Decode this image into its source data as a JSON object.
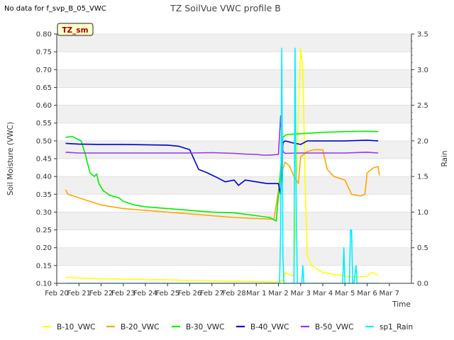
{
  "note": "No data for f_svp_B_05_VWC",
  "badge": "TZ_sm",
  "chart_data": {
    "type": "line",
    "title": "TZ SoilVue VWC profile B",
    "xlabel": "Time",
    "ylabel": "Soil Moisture (VWC)",
    "y2label": "Rain",
    "xlim": [
      0,
      16
    ],
    "ylim": [
      0.1,
      0.8
    ],
    "y2lim": [
      0.0,
      3.5
    ],
    "grid": "horizontal bands",
    "legend": "bottom",
    "x_ticks": [
      "Feb 20",
      "Feb 21",
      "Feb 22",
      "Feb 23",
      "Feb 24",
      "Feb 25",
      "Feb 26",
      "Feb 27",
      "Feb 28",
      "Mar 1",
      "Mar 2",
      "Mar 3",
      "Mar 4",
      "Mar 5",
      "Mar 6",
      "Mar 7"
    ],
    "y_ticks": [
      "0.10",
      "0.15",
      "0.20",
      "0.25",
      "0.30",
      "0.35",
      "0.40",
      "0.45",
      "0.50",
      "0.55",
      "0.60",
      "0.65",
      "0.70",
      "0.75",
      "0.80"
    ],
    "y2_ticks": [
      "0.0",
      "0.5",
      "1.0",
      "1.5",
      "2.0",
      "2.5",
      "3.0",
      "3.5"
    ],
    "series": [
      {
        "name": "B-10_VWC",
        "color": "#ffff00",
        "axis": "left",
        "x": [
          0.4,
          1,
          2,
          3,
          4,
          5,
          6,
          7,
          8,
          9,
          9.8,
          10.2,
          10.3,
          10.5,
          10.7,
          10.9,
          11.0,
          11.1,
          11.2,
          11.3,
          11.5,
          12,
          13,
          13.5,
          14,
          14.2,
          14.5
        ],
        "y": [
          0.117,
          0.115,
          0.113,
          0.112,
          0.111,
          0.11,
          0.108,
          0.107,
          0.106,
          0.105,
          0.103,
          0.108,
          0.13,
          0.125,
          0.12,
          0.58,
          0.76,
          0.7,
          0.4,
          0.18,
          0.15,
          0.13,
          0.12,
          0.118,
          0.12,
          0.13,
          0.125
        ]
      },
      {
        "name": "B-20_VWC",
        "color": "#ffa500",
        "axis": "left",
        "x": [
          0.4,
          0.5,
          1,
          2,
          3,
          4,
          5,
          6,
          7,
          8,
          9,
          9.8,
          10.1,
          10.3,
          10.5,
          10.7,
          10.9,
          11.0,
          11.3,
          11.6,
          12.0,
          12.2,
          12.5,
          13.0,
          13.3,
          13.7,
          13.9,
          14.0,
          14.3,
          14.5,
          14.55
        ],
        "y": [
          0.363,
          0.35,
          0.34,
          0.32,
          0.31,
          0.305,
          0.3,
          0.295,
          0.29,
          0.285,
          0.282,
          0.28,
          0.4,
          0.44,
          0.43,
          0.4,
          0.38,
          0.455,
          0.47,
          0.475,
          0.475,
          0.42,
          0.4,
          0.39,
          0.35,
          0.345,
          0.35,
          0.41,
          0.425,
          0.428,
          0.403
        ]
      },
      {
        "name": "B-30_VWC",
        "color": "#00ee00",
        "axis": "left",
        "x": [
          0.4,
          0.7,
          1.1,
          1.3,
          1.5,
          1.7,
          1.8,
          1.9,
          2.1,
          2.4,
          2.8,
          3.0,
          3.5,
          4.0,
          5.0,
          6.0,
          7.0,
          8.0,
          9.0,
          9.6,
          9.9,
          10.1,
          10.2,
          10.3,
          10.4,
          11.0,
          12.0,
          13.0,
          14.0,
          14.5
        ],
        "y": [
          0.51,
          0.512,
          0.5,
          0.46,
          0.41,
          0.4,
          0.407,
          0.38,
          0.36,
          0.347,
          0.34,
          0.33,
          0.32,
          0.315,
          0.31,
          0.305,
          0.3,
          0.298,
          0.29,
          0.285,
          0.275,
          0.42,
          0.51,
          0.515,
          0.518,
          0.52,
          0.524,
          0.526,
          0.527,
          0.526
        ]
      },
      {
        "name": "B-40_VWC",
        "color": "#0000cc",
        "axis": "left",
        "x": [
          0.4,
          1,
          2,
          3,
          4,
          5,
          5.5,
          6.0,
          6.4,
          6.8,
          7.3,
          7.6,
          8.0,
          8.2,
          8.5,
          9.0,
          9.5,
          10.0,
          10.1,
          10.2,
          10.3,
          10.6,
          11.0,
          11.3,
          12,
          13,
          14,
          14.5
        ],
        "y": [
          0.493,
          0.491,
          0.49,
          0.49,
          0.489,
          0.488,
          0.485,
          0.475,
          0.42,
          0.41,
          0.395,
          0.385,
          0.39,
          0.375,
          0.39,
          0.385,
          0.38,
          0.38,
          0.35,
          0.495,
          0.5,
          0.495,
          0.49,
          0.5,
          0.5,
          0.5,
          0.502,
          0.5
        ]
      },
      {
        "name": "B-50_VWC",
        "color": "#9933ee",
        "axis": "left",
        "x": [
          0.4,
          1,
          2,
          3,
          4,
          5,
          5.5,
          6,
          7,
          7.5,
          8,
          8.5,
          9,
          9.3,
          9.6,
          10.0,
          10.1,
          10.2,
          10.3,
          11,
          12,
          13,
          14,
          14.5
        ],
        "y": [
          0.468,
          0.466,
          0.466,
          0.466,
          0.466,
          0.466,
          0.466,
          0.466,
          0.467,
          0.466,
          0.465,
          0.463,
          0.462,
          0.46,
          0.46,
          0.462,
          0.57,
          0.47,
          0.465,
          0.466,
          0.466,
          0.466,
          0.468,
          0.466
        ]
      },
      {
        "name": "sp1_Rain",
        "color": "#00eeff",
        "axis": "right",
        "x": [
          0.4,
          10.05,
          10.1,
          10.15,
          10.2,
          10.25,
          10.7,
          10.75,
          10.8,
          10.85,
          11.05,
          11.1,
          11.15,
          12.9,
          12.95,
          13.0,
          13.05,
          13.2,
          13.25,
          13.3,
          13.35,
          13.4,
          13.5,
          13.55,
          13.6,
          14.5
        ],
        "y": [
          0,
          0,
          0.75,
          3.3,
          0.4,
          0,
          0,
          3.3,
          1.2,
          0,
          0,
          0.25,
          0,
          0,
          0.5,
          0,
          0,
          0,
          0.75,
          0.75,
          0,
          0,
          0.25,
          0,
          0,
          0
        ]
      }
    ]
  }
}
